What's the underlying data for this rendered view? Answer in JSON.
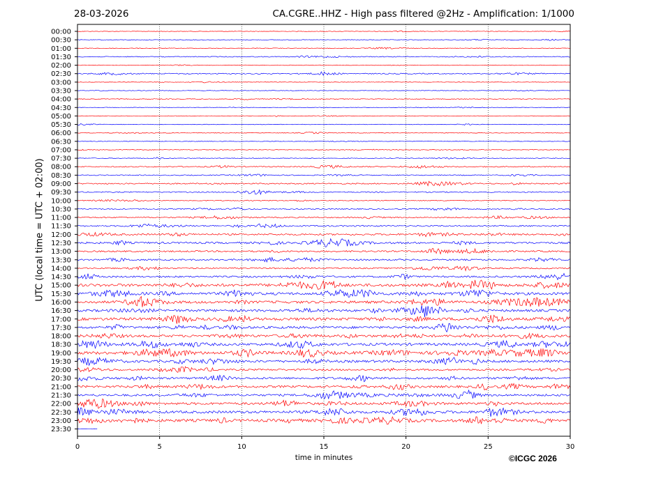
{
  "header": {
    "date": "28-03-2026",
    "title": "CA.CGRE..HHZ - High pass filtered @2Hz - Amplification: 1/1000"
  },
  "footer": {
    "credit": "©ICGC 2026"
  },
  "chart_data": {
    "type": "line",
    "title": "CA.CGRE..HHZ - High pass filtered @2Hz - Amplification: 1/1000",
    "xlabel": "time in minutes",
    "ylabel": "UTC (local time = UTC + 02:00)",
    "xlim": [
      0,
      30
    ],
    "x_ticks": [
      0,
      5,
      10,
      15,
      20,
      25,
      30
    ],
    "grid": "vertical dotted at x ticks",
    "colors": {
      "even_rows": "#ff0000",
      "odd_rows": "#0000ff"
    },
    "rows": [
      {
        "label": "00:00",
        "amp": 0.3
      },
      {
        "label": "00:30",
        "amp": 0.3
      },
      {
        "label": "01:00",
        "amp": 0.4
      },
      {
        "label": "01:30",
        "amp": 0.5
      },
      {
        "label": "02:00",
        "amp": 0.3
      },
      {
        "label": "02:30",
        "amp": 0.6
      },
      {
        "label": "03:00",
        "amp": 0.3
      },
      {
        "label": "03:30",
        "amp": 0.3
      },
      {
        "label": "04:00",
        "amp": 0.4
      },
      {
        "label": "04:30",
        "amp": 0.3
      },
      {
        "label": "05:00",
        "amp": 0.3
      },
      {
        "label": "05:30",
        "amp": 0.3
      },
      {
        "label": "06:00",
        "amp": 0.4
      },
      {
        "label": "06:30",
        "amp": 0.3
      },
      {
        "label": "07:00",
        "amp": 0.4
      },
      {
        "label": "07:30",
        "amp": 0.4
      },
      {
        "label": "08:00",
        "amp": 0.6
      },
      {
        "label": "08:30",
        "amp": 0.5
      },
      {
        "label": "09:00",
        "amp": 0.7
      },
      {
        "label": "09:30",
        "amp": 0.6
      },
      {
        "label": "10:00",
        "amp": 0.5
      },
      {
        "label": "10:30",
        "amp": 0.6
      },
      {
        "label": "11:00",
        "amp": 0.7
      },
      {
        "label": "11:30",
        "amp": 0.8
      },
      {
        "label": "12:00",
        "amp": 1.0
      },
      {
        "label": "12:30",
        "amp": 1.1
      },
      {
        "label": "13:00",
        "amp": 0.9
      },
      {
        "label": "13:30",
        "amp": 0.9
      },
      {
        "label": "14:00",
        "amp": 0.8
      },
      {
        "label": "14:30",
        "amp": 1.0
      },
      {
        "label": "15:00",
        "amp": 1.6
      },
      {
        "label": "15:30",
        "amp": 1.5
      },
      {
        "label": "16:00",
        "amp": 1.5
      },
      {
        "label": "16:30",
        "amp": 1.4
      },
      {
        "label": "17:00",
        "amp": 1.6
      },
      {
        "label": "17:30",
        "amp": 1.4
      },
      {
        "label": "18:00",
        "amp": 1.4
      },
      {
        "label": "18:30",
        "amp": 1.5
      },
      {
        "label": "19:00",
        "amp": 1.7
      },
      {
        "label": "19:30",
        "amp": 1.4
      },
      {
        "label": "20:00",
        "amp": 1.0
      },
      {
        "label": "20:30",
        "amp": 1.2
      },
      {
        "label": "21:00",
        "amp": 1.3
      },
      {
        "label": "21:30",
        "amp": 1.2
      },
      {
        "label": "22:00",
        "amp": 1.4
      },
      {
        "label": "22:30",
        "amp": 1.5
      },
      {
        "label": "23:00",
        "amp": 1.6
      },
      {
        "label": "23:30",
        "amp": 0.2,
        "partial_until_minute": 1.2
      }
    ]
  }
}
